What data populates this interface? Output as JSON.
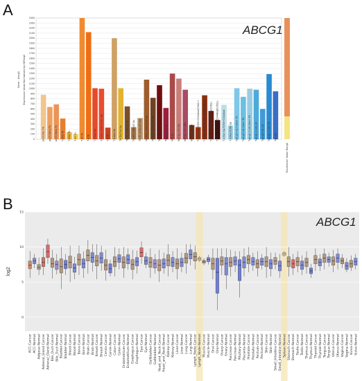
{
  "panel_a": {
    "letter": "A",
    "gene": "ABCG1",
    "ylabel_gene": "Gene : Abcg1",
    "ylabel": "Expression Value Normalized by DESeq2",
    "colorbar_label": "Expression Value Range"
  },
  "panel_b": {
    "letter": "B",
    "gene": "ABCG1",
    "ylabel": "log2"
  },
  "chart_data": [
    {
      "type": "bar",
      "title": "ABCG1",
      "ylabel": "Expression Value Normalized by DESeq2",
      "ylim": [
        0,
        2400
      ],
      "yticks": [
        0,
        100,
        200,
        300,
        400,
        500,
        600,
        700,
        800,
        900,
        1000,
        1100,
        1200,
        1300,
        1400,
        1500,
        1600,
        1700,
        1800,
        1900,
        2000,
        2100,
        2200,
        2300,
        2400
      ],
      "grid": true,
      "categories": [
        "proT.DN1.Th",
        "proT.DN2a.Th",
        "proT.DN2b.Th",
        "T.DN3.Th",
        "T.DN4.Th",
        "T.ISP.Th",
        "T.DP.Th",
        "T.4.Th",
        "T.4.Nve.Sp",
        "T.4.Nve.CD8+CD4+.Sp",
        "T.8.Th",
        "T.8.Nve.Sp",
        "T8.TN.P14.Sp",
        "T8.TE.LCMV.d7.Sp",
        "T8.MP.LCMV.d7.Sp",
        "T8.TE.LCMV.d7.Gut",
        "T8.Tem.LCMV.d180.Sp",
        "T8.Tcm.LCMV.d180.Sp",
        "Treg.4.FP3+.Nrp1+.Co",
        "Treg.4.25hi.Sp",
        "NKT.Sp",
        "NKT.Sp.LPS.3hr",
        "NKT.Sp.LPS.18hr",
        "NKT.Sp.LPS.3d",
        "T.8.Nve.Sp-TCRB+CD44lowCD62L+",
        "T.8.Nve.Sp-TCRB+CD44highCD62L+",
        "T.8.Nve.Sp-TCRB+CD44lowCD62L-",
        "T.8.Nve.Sp-TCRB+CD44highCD62L-",
        "T.4.Nve.Sp-TCRB+CD44low",
        "T.4.Nve.TCRb-Sp",
        "Tgd.g2+d17.24a+.Th",
        "Tgd.g2+d1.24a+.Th",
        "Tgd.g1.1+d1.24a+.Th",
        "Tgd.g1.1+d1.LN",
        "Tgd.g2+d1.LN",
        "Tgd.g1.1+d1.LN",
        "Tgd.Sp"
      ],
      "values": [
        880,
        640,
        690,
        410,
        140,
        100,
        2400,
        2120,
        1010,
        1000,
        230,
        2000,
        1010,
        650,
        240,
        420,
        1180,
        820,
        1070,
        620,
        1300,
        1200,
        980,
        280,
        240,
        870,
        560,
        380,
        680,
        270,
        1010,
        840,
        1000,
        980,
        600,
        1290,
        950
      ],
      "colors": [
        "#f2c48f",
        "#eea061",
        "#eb9457",
        "#e77e2f",
        "#f1b23c",
        "#f7d24a",
        "#f08a2f",
        "#ef6e14",
        "#e54b2a",
        "#ea4c2f",
        "#c7431e",
        "#cfa165",
        "#e3b232",
        "#7a4f2a",
        "#a87747",
        "#b89468",
        "#9e5d2c",
        "#704221",
        "#6e0f0e",
        "#9d1f3d",
        "#aa4a48",
        "#c97e79",
        "#aa4a63",
        "#6f3017",
        "#9d3414",
        "#8a2e0f",
        "#661b0e",
        "#3c0d0c",
        "#b8dfea",
        "#9fcde0",
        "#7fc7e8",
        "#69c0e6",
        "#98cce3",
        "#4ea9db",
        "#3f9ad7",
        "#2a8ad1",
        "#3a6dc7"
      ],
      "colorbar": {
        "range_colors": [
          "#f6e482",
          "#e9915a"
        ]
      }
    },
    {
      "type": "box",
      "title": "ABCG1",
      "ylabel": "log2",
      "ylim": [
        -2,
        15
      ],
      "yticks": [
        0,
        5,
        10,
        15
      ],
      "highlighted": [
        "Lymph_Node-Normal",
        "Spleen-Normal"
      ],
      "categories": [
        {
          "label": "ACC-Cancer",
          "median": 7.4,
          "q1": 6.9,
          "q3": 8.0,
          "lo": 5.6,
          "hi": 9.4,
          "fill": "#d08a6a"
        },
        {
          "label": "ACC-Normal",
          "median": 8.0,
          "q1": 7.6,
          "q3": 8.4,
          "lo": 7.0,
          "hi": 9.0,
          "fill": "#7e8ad6"
        },
        {
          "label": "Adipose-Normal",
          "median": 7.1,
          "q1": 6.8,
          "q3": 7.5,
          "lo": 6.0,
          "hi": 8.5,
          "fill": "#b39880"
        },
        {
          "label": "Adrenal_Gland-Cancer",
          "median": 7.8,
          "q1": 7.2,
          "q3": 8.5,
          "lo": 6.0,
          "hi": 9.8,
          "fill": "#c97769"
        },
        {
          "label": "Adrenal_Gland-Normal",
          "median": 9.3,
          "q1": 8.5,
          "q3": 10.3,
          "lo": 7.6,
          "hi": 11.2,
          "fill": "#d8696a"
        },
        {
          "label": "Bile_Duct-Cancer",
          "median": 7.6,
          "q1": 7.1,
          "q3": 8.4,
          "lo": 5.5,
          "hi": 9.6,
          "fill": "#b39880"
        },
        {
          "label": "Bile_Duct-Normal",
          "median": 7.5,
          "q1": 6.8,
          "q3": 8.0,
          "lo": 6.1,
          "hi": 9.0,
          "fill": "#9d8bd0"
        },
        {
          "label": "Bladder-Cancer",
          "median": 7.2,
          "q1": 6.3,
          "q3": 8.3,
          "lo": 4.0,
          "hi": 10.0,
          "fill": "#b39880"
        },
        {
          "label": "Bladder-Normal",
          "median": 7.5,
          "q1": 6.9,
          "q3": 8.1,
          "lo": 6.0,
          "hi": 9.0,
          "fill": "#6f7dd8"
        },
        {
          "label": "Blood-Cancer",
          "median": 7.8,
          "q1": 7.0,
          "q3": 8.7,
          "lo": 5.0,
          "hi": 10.2,
          "fill": "#b39880"
        },
        {
          "label": "Blood-Normal",
          "median": 7.0,
          "q1": 6.4,
          "q3": 7.6,
          "lo": 5.4,
          "hi": 8.6,
          "fill": "#7e8ad6"
        },
        {
          "label": "Bone-Cancer",
          "median": 8.2,
          "q1": 7.4,
          "q3": 9.0,
          "lo": 6.0,
          "hi": 10.2,
          "fill": "#b39880"
        },
        {
          "label": "Bone-Normal",
          "median": 7.6,
          "q1": 7.0,
          "q3": 8.3,
          "lo": 5.6,
          "hi": 9.4,
          "fill": "#7e8ad6"
        },
        {
          "label": "Brain-Cancer",
          "median": 8.8,
          "q1": 8.0,
          "q3": 9.6,
          "lo": 6.2,
          "hi": 11.0,
          "fill": "#b39880"
        },
        {
          "label": "Brain-Normal",
          "median": 8.5,
          "q1": 7.8,
          "q3": 9.2,
          "lo": 6.5,
          "hi": 10.4,
          "fill": "#7e8ad6"
        },
        {
          "label": "Breast-Cancer",
          "median": 8.0,
          "q1": 7.3,
          "q3": 8.8,
          "lo": 5.4,
          "hi": 10.4,
          "fill": "#b39880"
        },
        {
          "label": "Breast-Normal",
          "median": 8.4,
          "q1": 7.7,
          "q3": 9.2,
          "lo": 6.6,
          "hi": 10.2,
          "fill": "#7e8ad6"
        },
        {
          "label": "Cervix-Cancer",
          "median": 7.4,
          "q1": 6.7,
          "q3": 8.2,
          "lo": 5.2,
          "hi": 9.6,
          "fill": "#b39880"
        },
        {
          "label": "Cervix-Normal",
          "median": 6.9,
          "q1": 6.3,
          "q3": 7.6,
          "lo": 5.8,
          "hi": 8.2,
          "fill": "#6f7dd8"
        },
        {
          "label": "Colon-Cancer",
          "median": 7.9,
          "q1": 7.2,
          "q3": 8.6,
          "lo": 5.8,
          "hi": 10.0,
          "fill": "#b39880"
        },
        {
          "label": "Colon-Normal",
          "median": 8.3,
          "q1": 7.8,
          "q3": 8.9,
          "lo": 6.8,
          "hi": 9.8,
          "fill": "#7e8ad6"
        },
        {
          "label": "Endometrium-Cancer",
          "median": 7.8,
          "q1": 7.0,
          "q3": 8.6,
          "lo": 5.6,
          "hi": 10.0,
          "fill": "#b39880"
        },
        {
          "label": "Endometrium-Normal",
          "median": 8.2,
          "q1": 7.6,
          "q3": 8.9,
          "lo": 6.8,
          "hi": 9.8,
          "fill": "#7e8ad6"
        },
        {
          "label": "Esophagus-Cancer",
          "median": 7.5,
          "q1": 6.8,
          "q3": 8.2,
          "lo": 5.4,
          "hi": 9.6,
          "fill": "#b39880"
        },
        {
          "label": "Esophagus-Normal",
          "median": 7.9,
          "q1": 7.3,
          "q3": 8.5,
          "lo": 6.2,
          "hi": 9.5,
          "fill": "#7e8ad6"
        },
        {
          "label": "Eye-Cancer",
          "median": 9.2,
          "q1": 8.6,
          "q3": 9.9,
          "lo": 7.6,
          "hi": 10.8,
          "fill": "#d8696a"
        },
        {
          "label": "Eye-Normal",
          "median": 8.0,
          "q1": 7.5,
          "q3": 8.6,
          "lo": 7.0,
          "hi": 9.2,
          "fill": "#7e8ad6"
        },
        {
          "label": "Gallbladder-Cancer",
          "median": 7.8,
          "q1": 7.1,
          "q3": 8.5,
          "lo": 5.6,
          "hi": 9.8,
          "fill": "#b39880"
        },
        {
          "label": "Gallbladder-Normal",
          "median": 7.6,
          "q1": 7.0,
          "q3": 8.2,
          "lo": 6.2,
          "hi": 9.0,
          "fill": "#9d8bd0"
        },
        {
          "label": "Head_and_Neck-Cancer",
          "median": 7.4,
          "q1": 6.6,
          "q3": 8.2,
          "lo": 5.0,
          "hi": 9.6,
          "fill": "#b39880"
        },
        {
          "label": "Head_and_Neck-Normal",
          "median": 7.6,
          "q1": 7.0,
          "q3": 8.3,
          "lo": 6.2,
          "hi": 9.2,
          "fill": "#7e8ad6"
        },
        {
          "label": "Kidney-Cancer",
          "median": 8.1,
          "q1": 7.3,
          "q3": 8.9,
          "lo": 5.8,
          "hi": 10.4,
          "fill": "#b39880"
        },
        {
          "label": "Kidney-Normal",
          "median": 7.8,
          "q1": 7.2,
          "q3": 8.5,
          "lo": 6.4,
          "hi": 9.4,
          "fill": "#7e8ad6"
        },
        {
          "label": "Liver-Cancer",
          "median": 7.6,
          "q1": 6.9,
          "q3": 8.3,
          "lo": 5.4,
          "hi": 9.8,
          "fill": "#b39880"
        },
        {
          "label": "Liver-Normal",
          "median": 7.8,
          "q1": 7.2,
          "q3": 8.4,
          "lo": 6.4,
          "hi": 9.2,
          "fill": "#7e8ad6"
        },
        {
          "label": "Lung-Cancer",
          "median": 8.4,
          "q1": 7.7,
          "q3": 9.1,
          "lo": 6.2,
          "hi": 10.4,
          "fill": "#b39880"
        },
        {
          "label": "Lung-Normal",
          "median": 8.9,
          "q1": 8.3,
          "q3": 9.6,
          "lo": 7.4,
          "hi": 10.4,
          "fill": "#7e8ad6"
        },
        {
          "label": "Lymph_Node-Cancer",
          "median": 8.6,
          "q1": 8.0,
          "q3": 9.2,
          "lo": 6.8,
          "hi": 10.2,
          "fill": "#b39880"
        },
        {
          "label": "Lymph_Node-Normal",
          "median": 8.3,
          "q1": 8.1,
          "q3": 8.5,
          "lo": 7.9,
          "hi": 8.7,
          "fill": "#e8d9b0"
        },
        {
          "label": "Muscle-Cancer",
          "median": 7.9,
          "q1": 7.7,
          "q3": 8.1,
          "lo": 7.4,
          "hi": 8.4,
          "fill": "#b39880"
        },
        {
          "label": "Muscle-Normal",
          "median": 8.2,
          "q1": 7.9,
          "q3": 8.5,
          "lo": 7.5,
          "hi": 8.9,
          "fill": "#7e8ad6"
        },
        {
          "label": "Oral-Cancer",
          "median": 7.6,
          "q1": 6.8,
          "q3": 8.4,
          "lo": 5.4,
          "hi": 9.8,
          "fill": "#b39880"
        },
        {
          "label": "Oral-Normal",
          "median": 6.4,
          "q1": 3.4,
          "q3": 8.4,
          "lo": 1.0,
          "hi": 9.8,
          "fill": "#6f7dd8"
        },
        {
          "label": "Ovary-Cancer",
          "median": 8.0,
          "q1": 7.4,
          "q3": 8.6,
          "lo": 6.0,
          "hi": 9.8,
          "fill": "#b39880"
        },
        {
          "label": "Ovary-Normal",
          "median": 7.6,
          "q1": 6.0,
          "q3": 8.5,
          "lo": 4.0,
          "hi": 9.8,
          "fill": "#7e8ad6"
        },
        {
          "label": "Pancreas-Cancer",
          "median": 7.8,
          "q1": 7.2,
          "q3": 8.5,
          "lo": 5.8,
          "hi": 9.6,
          "fill": "#b39880"
        },
        {
          "label": "Pancreas-Normal",
          "median": 8.0,
          "q1": 7.4,
          "q3": 8.6,
          "lo": 6.4,
          "hi": 9.4,
          "fill": "#7e8ad6"
        },
        {
          "label": "Pituitary-Normal",
          "median": 7.4,
          "q1": 5.2,
          "q3": 8.2,
          "lo": 2.8,
          "hi": 9.4,
          "fill": "#6f7dd8"
        },
        {
          "label": "Placenta-Normal",
          "median": 7.8,
          "q1": 7.0,
          "q3": 8.6,
          "lo": 5.8,
          "hi": 9.8,
          "fill": "#7e8ad6"
        },
        {
          "label": "Prostate-Cancer",
          "median": 8.2,
          "q1": 7.6,
          "q3": 8.8,
          "lo": 6.4,
          "hi": 10.0,
          "fill": "#b39880"
        },
        {
          "label": "Prostate-Normal",
          "median": 7.9,
          "q1": 7.4,
          "q3": 8.5,
          "lo": 6.6,
          "hi": 9.2,
          "fill": "#7e8ad6"
        },
        {
          "label": "Rectum-Cancer",
          "median": 7.6,
          "q1": 7.0,
          "q3": 8.2,
          "lo": 5.8,
          "hi": 9.4,
          "fill": "#b39880"
        },
        {
          "label": "Rectum-Normal",
          "median": 7.9,
          "q1": 7.4,
          "q3": 8.4,
          "lo": 6.8,
          "hi": 9.0,
          "fill": "#7e8ad6"
        },
        {
          "label": "Skin-Cancer",
          "median": 7.9,
          "q1": 7.2,
          "q3": 8.6,
          "lo": 5.6,
          "hi": 10.0,
          "fill": "#b39880"
        },
        {
          "label": "Skin-Normal",
          "median": 7.6,
          "q1": 6.9,
          "q3": 8.2,
          "lo": 5.8,
          "hi": 9.2,
          "fill": "#7e8ad6"
        },
        {
          "label": "Small_Intestine-Cancer",
          "median": 8.0,
          "q1": 7.5,
          "q3": 8.5,
          "lo": 6.8,
          "hi": 9.2,
          "fill": "#b39880"
        },
        {
          "label": "Small_Intestine-Normal",
          "median": 7.3,
          "q1": 6.6,
          "q3": 8.0,
          "lo": 5.6,
          "hi": 9.0,
          "fill": "#7e8ad6"
        },
        {
          "label": "Spleen-Normal",
          "median": 9.0,
          "q1": 8.8,
          "q3": 9.2,
          "lo": 8.6,
          "hi": 9.4,
          "fill": "#e8d9b0"
        },
        {
          "label": "Stomach-Cancer",
          "median": 7.9,
          "q1": 7.2,
          "q3": 8.6,
          "lo": 5.8,
          "hi": 10.0,
          "fill": "#b39880"
        },
        {
          "label": "Stomach-Normal",
          "median": 7.6,
          "q1": 7.0,
          "q3": 8.2,
          "lo": 6.0,
          "hi": 9.0,
          "fill": "#d8696a"
        },
        {
          "label": "Testis-Cancer",
          "median": 7.9,
          "q1": 7.3,
          "q3": 8.5,
          "lo": 6.4,
          "hi": 9.4,
          "fill": "#b39880"
        },
        {
          "label": "Testis-Normal",
          "median": 7.4,
          "q1": 6.8,
          "q3": 8.0,
          "lo": 6.0,
          "hi": 8.8,
          "fill": "#7e8ad6"
        },
        {
          "label": "Thymus-Cancer",
          "median": 7.8,
          "q1": 7.2,
          "q3": 8.4,
          "lo": 6.2,
          "hi": 9.4,
          "fill": "#b39880"
        },
        {
          "label": "Thymus-Normal",
          "median": 6.6,
          "q1": 6.2,
          "q3": 7.0,
          "lo": 5.6,
          "hi": 7.6,
          "fill": "#6f7dd8"
        },
        {
          "label": "Thyroid-Cancer",
          "median": 8.2,
          "q1": 7.6,
          "q3": 8.8,
          "lo": 6.6,
          "hi": 9.8,
          "fill": "#b39880"
        },
        {
          "label": "Thyroid-Normal",
          "median": 7.8,
          "q1": 7.3,
          "q3": 8.3,
          "lo": 6.6,
          "hi": 9.0,
          "fill": "#7e8ad6"
        },
        {
          "label": "Tongue-Cancer",
          "median": 8.4,
          "q1": 7.8,
          "q3": 9.0,
          "lo": 6.8,
          "hi": 9.8,
          "fill": "#b39880"
        },
        {
          "label": "Tongue-Normal",
          "median": 8.2,
          "q1": 7.8,
          "q3": 8.6,
          "lo": 7.2,
          "hi": 9.2,
          "fill": "#7e8ad6"
        },
        {
          "label": "Uterus-Cancer",
          "median": 8.0,
          "q1": 7.4,
          "q3": 8.6,
          "lo": 6.4,
          "hi": 9.6,
          "fill": "#b39880"
        },
        {
          "label": "Uterus-Normal",
          "median": 8.4,
          "q1": 7.8,
          "q3": 9.0,
          "lo": 6.8,
          "hi": 9.8,
          "fill": "#7e8ad6"
        },
        {
          "label": "Vagina-Cancer",
          "median": 8.0,
          "q1": 7.6,
          "q3": 8.4,
          "lo": 7.0,
          "hi": 9.0,
          "fill": "#b39880"
        },
        {
          "label": "Vagina-Normal",
          "median": 7.3,
          "q1": 6.8,
          "q3": 7.8,
          "lo": 6.4,
          "hi": 8.4,
          "fill": "#7e8ad6"
        },
        {
          "label": "Vulva-Cancer",
          "median": 7.6,
          "q1": 7.1,
          "q3": 8.1,
          "lo": 6.6,
          "hi": 8.8,
          "fill": "#b39880"
        },
        {
          "label": "Vulva-Normal",
          "median": 7.9,
          "q1": 7.4,
          "q3": 8.4,
          "lo": 6.8,
          "hi": 9.0,
          "fill": "#7e8ad6"
        }
      ]
    }
  ]
}
